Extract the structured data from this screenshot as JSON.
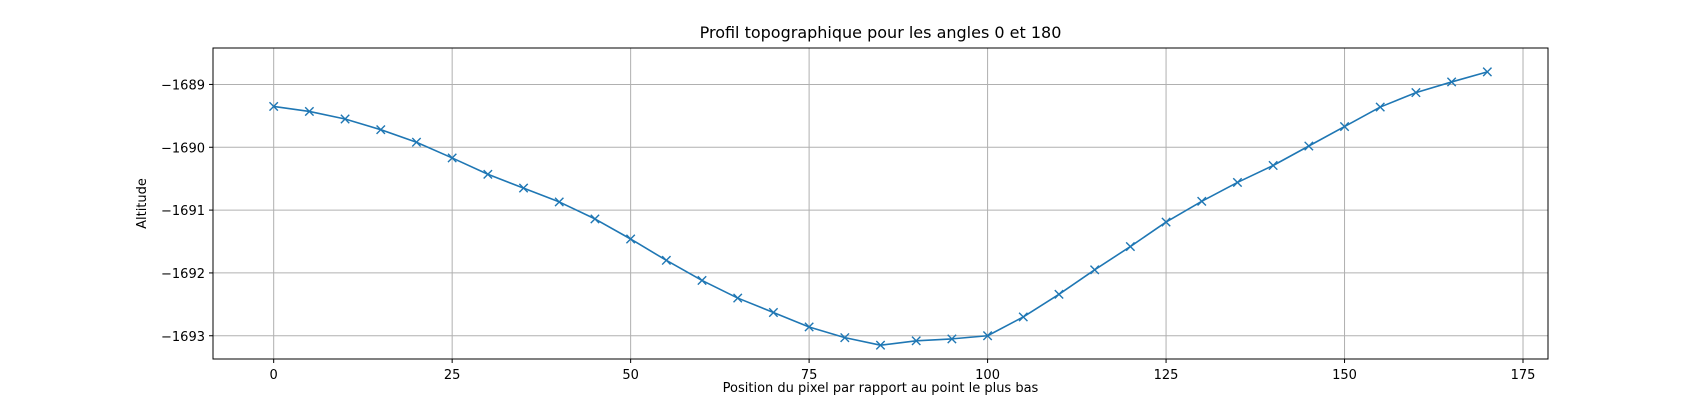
{
  "chart_data": {
    "type": "line",
    "title": "Profil topographique pour les angles 0 et 180",
    "xlabel": "Position du pixel par rapport au point le plus bas",
    "ylabel": "Altitude",
    "xlim": [
      -8.5,
      178.5
    ],
    "ylim": [
      -1693.37,
      -1688.42
    ],
    "x_ticks": [
      0,
      25,
      50,
      75,
      100,
      125,
      150,
      175
    ],
    "x_tick_labels": [
      "0",
      "25",
      "50",
      "75",
      "100",
      "125",
      "150",
      "175"
    ],
    "y_ticks": [
      -1693,
      -1692,
      -1691,
      -1690,
      -1689
    ],
    "y_tick_labels": [
      "−1693",
      "−1692",
      "−1691",
      "−1690",
      "−1689"
    ],
    "grid": true,
    "legend": false,
    "marker": "x",
    "line_color": "#1f77b4",
    "series": [
      {
        "x": [
          0,
          5,
          10,
          15,
          20,
          25,
          30,
          35,
          40,
          45,
          50,
          55,
          60,
          65,
          70,
          75,
          80,
          85,
          90,
          95,
          100,
          105,
          110,
          115,
          120,
          125,
          130,
          135,
          140,
          145,
          150,
          155,
          160,
          165,
          170
        ],
        "values": [
          -1689.35,
          -1689.43,
          -1689.55,
          -1689.72,
          -1689.92,
          -1690.17,
          -1690.43,
          -1690.65,
          -1690.87,
          -1691.14,
          -1691.46,
          -1691.8,
          -1692.12,
          -1692.4,
          -1692.63,
          -1692.86,
          -1693.03,
          -1693.15,
          -1693.08,
          -1693.05,
          -1693.0,
          -1692.7,
          -1692.34,
          -1691.95,
          -1691.58,
          -1691.19,
          -1690.86,
          -1690.56,
          -1690.29,
          -1689.98,
          -1689.67,
          -1689.36,
          -1689.13,
          -1688.96,
          -1688.8
        ]
      }
    ]
  }
}
